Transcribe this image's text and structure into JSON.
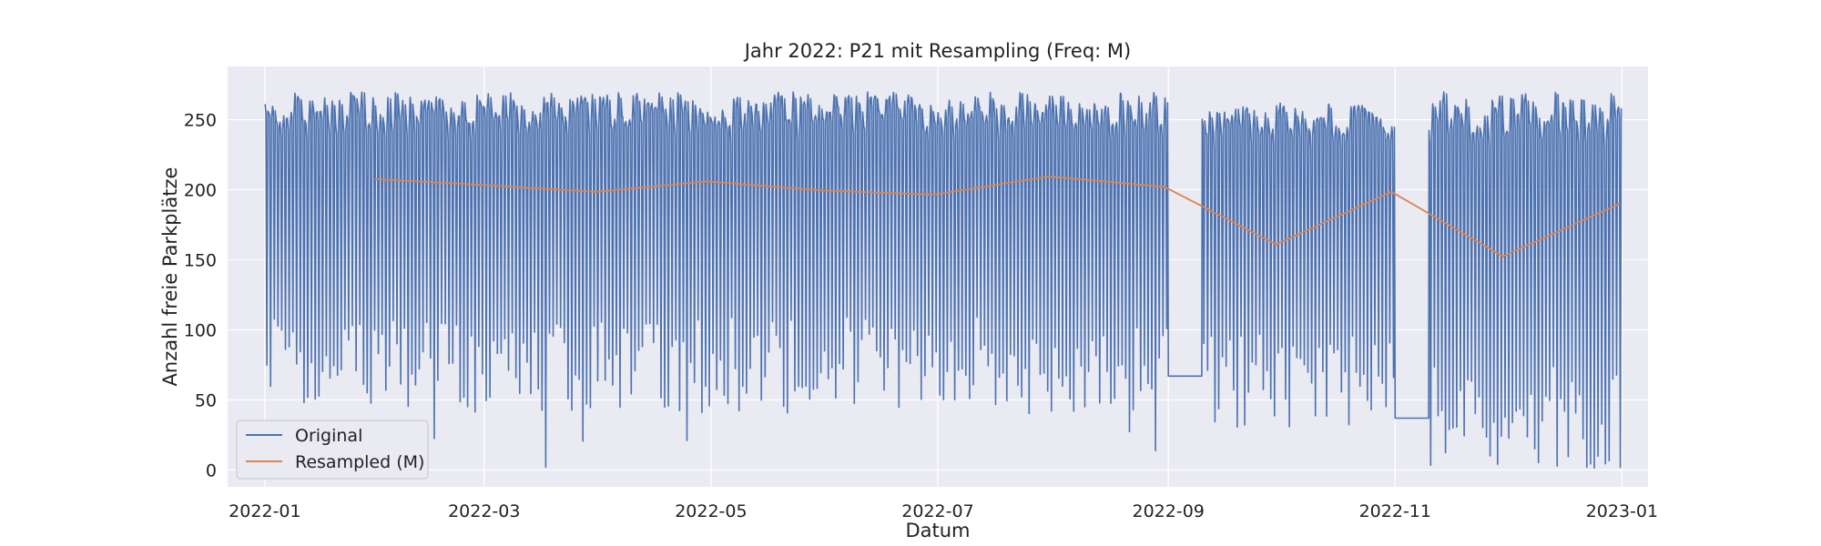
{
  "chart_data": {
    "type": "line",
    "title": "Jahr 2022: P21 mit Resampling (Freq: M)",
    "xlabel": "Datum",
    "ylabel": "Anzahl freie Parkplätze",
    "xlim": [
      "2021-12-22",
      "2023-01-08"
    ],
    "ylim": [
      -12,
      288
    ],
    "x_ticks": [
      {
        "date": "2022-01-01",
        "label": "2022-01"
      },
      {
        "date": "2022-03-01",
        "label": "2022-03"
      },
      {
        "date": "2022-05-01",
        "label": "2022-05"
      },
      {
        "date": "2022-07-01",
        "label": "2022-07"
      },
      {
        "date": "2022-09-01",
        "label": "2022-09"
      },
      {
        "date": "2022-11-01",
        "label": "2022-11"
      },
      {
        "date": "2023-01-01",
        "label": "2023-01"
      }
    ],
    "y_ticks": [
      0,
      50,
      100,
      150,
      200,
      250
    ],
    "grid": true,
    "legend": "lower-left",
    "series": [
      {
        "name": "Original",
        "color": "#4c72b0",
        "style": "dense daily oscillation",
        "segments": [
          {
            "start": "2022-01-01",
            "end": "2022-08-31",
            "high": [
              245,
              270
            ],
            "low": [
              40,
              110
            ]
          },
          {
            "start": "2022-09-01",
            "end": "2022-09-09",
            "constant": 67
          },
          {
            "start": "2022-09-10",
            "end": "2022-10-31",
            "high": [
              240,
              262
            ],
            "low": [
              30,
              100
            ]
          },
          {
            "start": "2022-11-01",
            "end": "2022-11-09",
            "constant": 37
          },
          {
            "start": "2022-11-10",
            "end": "2022-12-31",
            "high": [
              240,
              270
            ],
            "low": [
              0,
              80
            ]
          }
        ]
      },
      {
        "name": "Resampled (M)",
        "color": "#dd8452",
        "x": [
          "2022-01-31",
          "2022-02-28",
          "2022-03-31",
          "2022-04-30",
          "2022-05-31",
          "2022-06-30",
          "2022-07-31",
          "2022-08-31",
          "2022-09-30",
          "2022-10-31",
          "2022-11-30",
          "2022-12-31"
        ],
        "y": [
          207.5,
          203.5,
          198.5,
          206,
          199.5,
          196.5,
          209.5,
          202,
          161,
          198.5,
          152.5,
          189.5
        ]
      }
    ]
  }
}
